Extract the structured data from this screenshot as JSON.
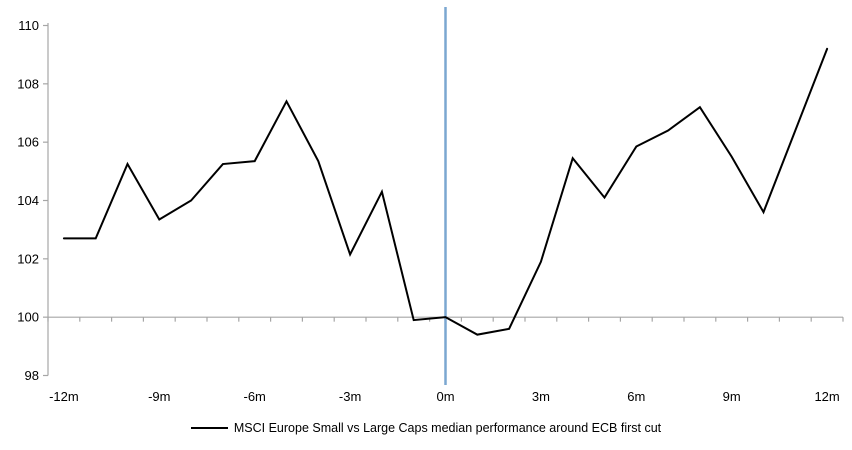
{
  "window": {
    "background_color": "#ffffff"
  },
  "chart_data": {
    "type": "line",
    "title": "",
    "x_months": [
      -12,
      -11,
      -10,
      -9,
      -8,
      -7,
      -6,
      -5,
      -4,
      -3,
      -2,
      -1,
      0,
      1,
      2,
      3,
      4,
      5,
      6,
      7,
      8,
      9,
      10,
      11,
      12
    ],
    "series": [
      {
        "name": "MSCI Europe Small vs Large Caps median performance around ECB first cut",
        "color": "#000000",
        "values": [
          102.7,
          102.7,
          105.25,
          103.35,
          104.0,
          105.25,
          105.35,
          107.4,
          105.35,
          102.15,
          104.3,
          99.9,
          100.0,
          99.4,
          99.6,
          101.9,
          105.45,
          104.1,
          105.85,
          106.4,
          107.2,
          105.5,
          103.6,
          106.4,
          109.2
        ]
      }
    ],
    "x_ticks": [
      {
        "month": -12,
        "label": "-12m"
      },
      {
        "month": -9,
        "label": "-9m"
      },
      {
        "month": -6,
        "label": "-6m"
      },
      {
        "month": -3,
        "label": "-3m"
      },
      {
        "month": 0,
        "label": "0m"
      },
      {
        "month": 3,
        "label": "3m"
      },
      {
        "month": 6,
        "label": "6m"
      },
      {
        "month": 9,
        "label": "9m"
      },
      {
        "month": 12,
        "label": "12m"
      }
    ],
    "y_ticks": [
      {
        "value": 98,
        "label": "98"
      },
      {
        "value": 100,
        "label": "100"
      },
      {
        "value": 102,
        "label": "102"
      },
      {
        "value": 104,
        "label": "104"
      },
      {
        "value": 106,
        "label": "106"
      },
      {
        "value": 108,
        "label": "108"
      },
      {
        "value": 110,
        "label": "110"
      }
    ],
    "ylim": [
      98,
      110
    ],
    "xlim_categories": [
      -12.5,
      12.5
    ],
    "category_axis_crosses_at": 100,
    "grid": false,
    "legend_position": "bottom-center",
    "event_line": {
      "x_month": 0,
      "color": "#7BA7D1"
    },
    "axis_color": "#A6A6A6"
  }
}
